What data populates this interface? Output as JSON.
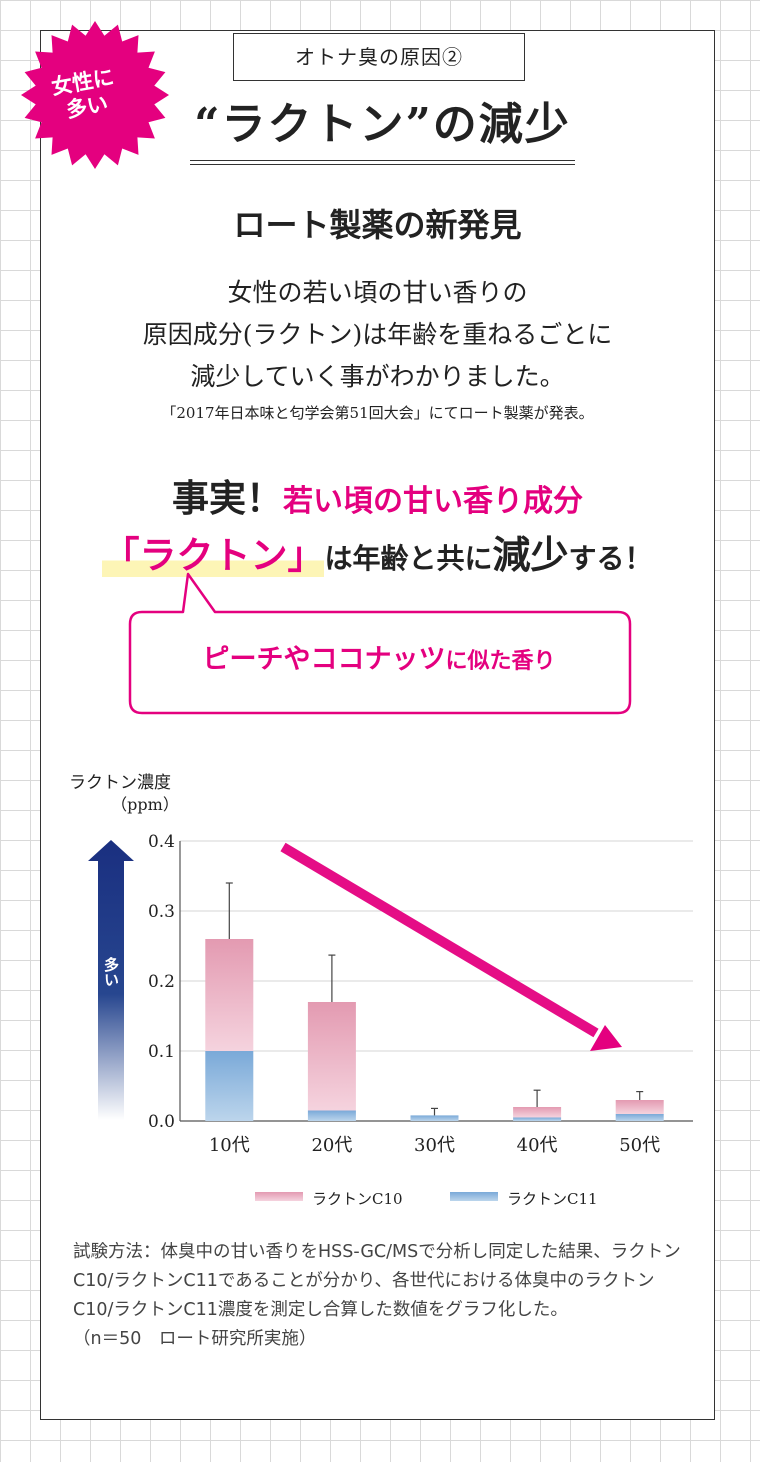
{
  "badge": {
    "line1": "女性に",
    "line2": "多い"
  },
  "subtitle": "オトナ臭の原因②",
  "title": "“ラクトン”の減少",
  "discovery": "ロート製薬の新発見",
  "body_lines": [
    "女性の若い頃の甘い香りの",
    "原因成分(ラクトン)は年齢を重ねるごとに",
    "減少していく事がわかりました。"
  ],
  "source": "「2017年日本味と匂学会第51回大会」にてロート製薬が発表。",
  "fact": {
    "keyword": "事実！",
    "pink": "若い頃の甘い香り成分",
    "highlight": "「ラクトン」",
    "mid": "は年齢と共に",
    "bold": "減少",
    "end": "する！"
  },
  "bubble": {
    "main": "ピーチやココナッツ",
    "tail": "に似た香り"
  },
  "colors": {
    "accent": "#e4007f",
    "c10": "#e8a0b6",
    "c11": "#8fb6dc",
    "arrow_navy": "#1a2f80"
  },
  "chart_data": {
    "type": "bar",
    "stacked": true,
    "ylabel": "ラクトン濃度",
    "yunit": "（ppm）",
    "ylim": [
      0,
      0.4
    ],
    "yticks": [
      "0.0",
      "0.1",
      "0.2",
      "0.3",
      "0.4"
    ],
    "categories": [
      "10代",
      "20代",
      "30代",
      "40代",
      "50代"
    ],
    "series": [
      {
        "name": "ラクトンC11",
        "values": [
          0.1,
          0.015,
          0.008,
          0.005,
          0.01
        ]
      },
      {
        "name": "ラクトンC10",
        "values": [
          0.16,
          0.155,
          0.0,
          0.015,
          0.02
        ]
      }
    ],
    "error_top": [
      0.34,
      0.237,
      0.018,
      0.044,
      0.042
    ],
    "side_arrow_label": "多い",
    "grid": true,
    "legend": "bottom"
  },
  "note": {
    "text": "試験方法：体臭中の甘い香りをHSS-GC/MSで分析し同定した結果、ラクトンC10/ラクトンC11であることが分かり、各世代における体臭中のラクトンC10/ラクトンC11濃度を測定し合算した数値をグラフ化した。",
    "credit": "（n＝50　ロート研究所実施）"
  }
}
